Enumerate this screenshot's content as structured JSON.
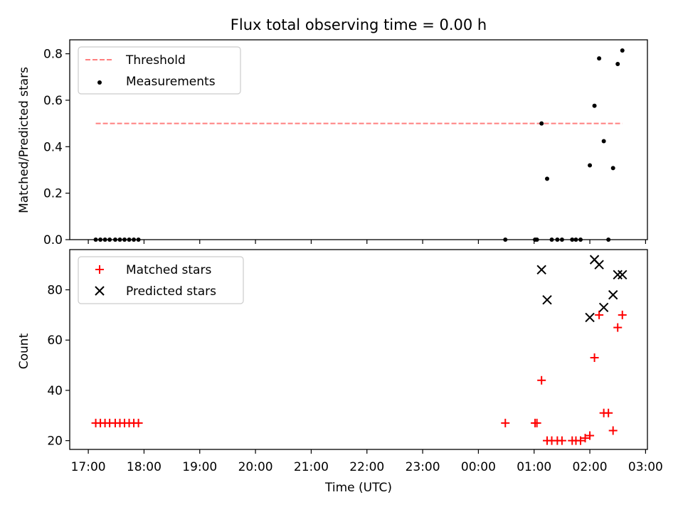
{
  "chart_data": [
    {
      "type": "scatter",
      "title": "Flux total observing time = 0.00 h",
      "xlabel": "",
      "ylabel": "Matched/Predicted stars",
      "xlim": [
        "16:40",
        "03:02"
      ],
      "ylim": [
        0,
        0.86
      ],
      "yticks": [
        "0.0",
        "0.2",
        "0.4",
        "0.6",
        "0.8"
      ],
      "legend_position": "upper-left",
      "threshold": {
        "name": "Threshold",
        "y": 0.5,
        "x_start": "17:08",
        "x_end": "02:35",
        "color": "#ff7f7f"
      },
      "series": [
        {
          "name": "Measurements",
          "color": "#000000",
          "marker": "dot",
          "points": [
            [
              "17:08",
              0
            ],
            [
              "17:13",
              0
            ],
            [
              "17:18",
              0
            ],
            [
              "17:23",
              0
            ],
            [
              "17:29",
              0
            ],
            [
              "17:34",
              0
            ],
            [
              "17:39",
              0
            ],
            [
              "17:44",
              0
            ],
            [
              "17:49",
              0
            ],
            [
              "17:54",
              0
            ],
            [
              "00:29",
              0
            ],
            [
              "01:01",
              0
            ],
            [
              "01:03",
              0
            ],
            [
              "01:08",
              0.5
            ],
            [
              "01:14",
              0.262
            ],
            [
              "01:19",
              0
            ],
            [
              "01:25",
              0
            ],
            [
              "01:30",
              0
            ],
            [
              "01:41",
              0
            ],
            [
              "01:45",
              0
            ],
            [
              "01:50",
              0
            ],
            [
              "02:00",
              0.32
            ],
            [
              "02:05",
              0.576
            ],
            [
              "02:10",
              0.78
            ],
            [
              "02:15",
              0.424
            ],
            [
              "02:20",
              0
            ],
            [
              "02:25",
              0.308
            ],
            [
              "02:30",
              0.756
            ],
            [
              "02:35",
              0.814
            ]
          ]
        }
      ]
    },
    {
      "type": "scatter",
      "title": "",
      "xlabel": "Time (UTC)",
      "ylabel": "Count",
      "xlim": [
        "16:40",
        "03:02"
      ],
      "ylim": [
        16.5,
        96
      ],
      "yticks": [
        "20",
        "40",
        "60",
        "80"
      ],
      "xticks": [
        "17:00",
        "18:00",
        "19:00",
        "20:00",
        "21:00",
        "22:00",
        "23:00",
        "00:00",
        "01:00",
        "02:00",
        "03:00"
      ],
      "legend_position": "upper-left",
      "series": [
        {
          "name": "Matched stars",
          "color": "#ff0000",
          "marker": "plus",
          "points": [
            [
              "17:08",
              27
            ],
            [
              "17:13",
              27
            ],
            [
              "17:18",
              27
            ],
            [
              "17:23",
              27
            ],
            [
              "17:29",
              27
            ],
            [
              "17:34",
              27
            ],
            [
              "17:39",
              27
            ],
            [
              "17:44",
              27
            ],
            [
              "17:49",
              27
            ],
            [
              "17:54",
              27
            ],
            [
              "00:29",
              27
            ],
            [
              "01:01",
              27
            ],
            [
              "01:03",
              27
            ],
            [
              "01:08",
              44
            ],
            [
              "01:14",
              20
            ],
            [
              "01:19",
              20
            ],
            [
              "01:25",
              20
            ],
            [
              "01:30",
              20
            ],
            [
              "01:41",
              20
            ],
            [
              "01:45",
              20
            ],
            [
              "01:50",
              20
            ],
            [
              "01:55",
              21
            ],
            [
              "02:00",
              22
            ],
            [
              "02:05",
              53
            ],
            [
              "02:10",
              70
            ],
            [
              "02:15",
              31
            ],
            [
              "02:20",
              31
            ],
            [
              "02:25",
              24
            ],
            [
              "02:30",
              65
            ],
            [
              "02:35",
              70
            ]
          ]
        },
        {
          "name": "Predicted stars",
          "color": "#000000",
          "marker": "x",
          "points": [
            [
              "01:08",
              88
            ],
            [
              "01:14",
              76
            ],
            [
              "02:00",
              69
            ],
            [
              "02:05",
              92
            ],
            [
              "02:10",
              90
            ],
            [
              "02:15",
              73
            ],
            [
              "02:25",
              78
            ],
            [
              "02:30",
              86
            ],
            [
              "02:35",
              86
            ]
          ]
        }
      ]
    }
  ]
}
